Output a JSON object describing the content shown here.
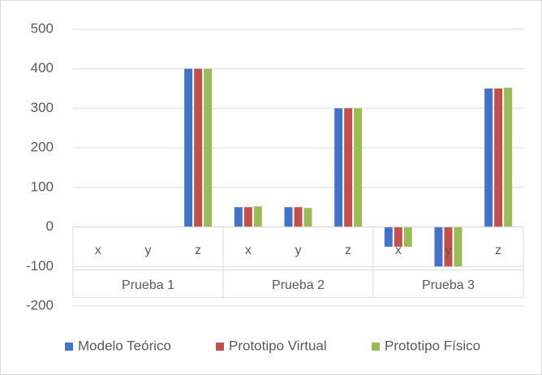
{
  "chart_data": {
    "type": "bar",
    "categories": [
      "x",
      "y",
      "z",
      "x",
      "y",
      "z",
      "x",
      "y",
      "z"
    ],
    "groups": [
      "Prueba 1",
      "Prueba 2",
      "Prueba 3"
    ],
    "series": [
      {
        "name": "Modelo Teórico",
        "color": "#4472c4",
        "values": [
          0,
          0,
          400,
          50,
          50,
          300,
          -50,
          -100,
          350
        ]
      },
      {
        "name": "Prototipo Virtual",
        "color": "#c0504d",
        "values": [
          0,
          0,
          400,
          50,
          50,
          300,
          -50,
          -100,
          350
        ]
      },
      {
        "name": "Prototipo Físico",
        "color": "#9bbb59",
        "values": [
          0,
          0,
          400,
          52,
          48,
          300,
          -50,
          -100,
          352
        ]
      }
    ],
    "ylim": [
      -200,
      500
    ],
    "yticks": [
      -200,
      -100,
      0,
      100,
      200,
      300,
      400,
      500
    ],
    "grid": true,
    "legend": "bottom"
  }
}
